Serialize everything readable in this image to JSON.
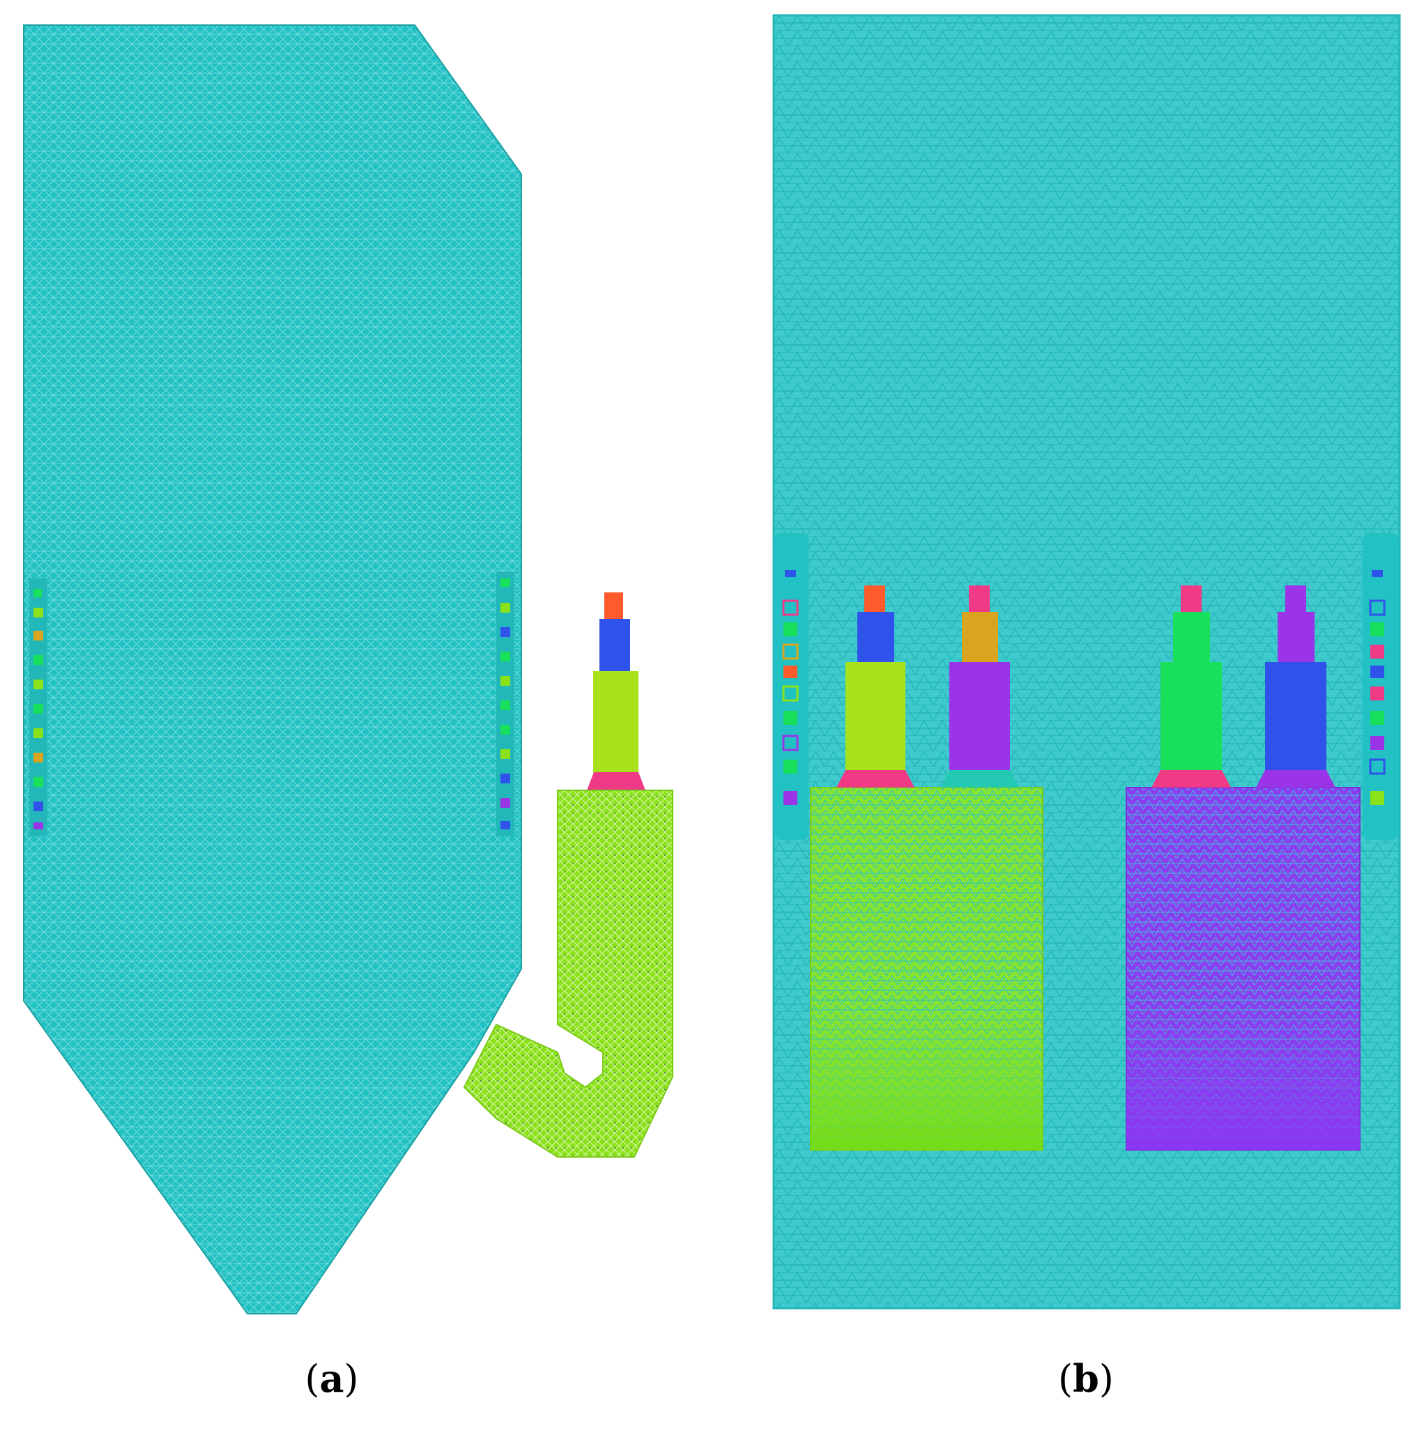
{
  "colors": {
    "mesh": "#22c1c3",
    "mesh_line": "#5fd6d8",
    "lime": "#8be21a",
    "yellow_green": "#a9e21d",
    "green": "#19e05a",
    "blue": "#2f52ea",
    "purple": "#9a34e6",
    "violet": "#8a3ef0",
    "magenta": "#f03a86",
    "orange_red": "#ff5a2c",
    "gold": "#d9a51f",
    "teal_cap": "#24c9b4"
  },
  "panels": [
    {
      "id": "a",
      "caption_open": "(",
      "caption_letter": "a",
      "caption_close": ")"
    },
    {
      "id": "b",
      "caption_open": "(",
      "caption_letter": "b",
      "caption_close": ")"
    }
  ]
}
